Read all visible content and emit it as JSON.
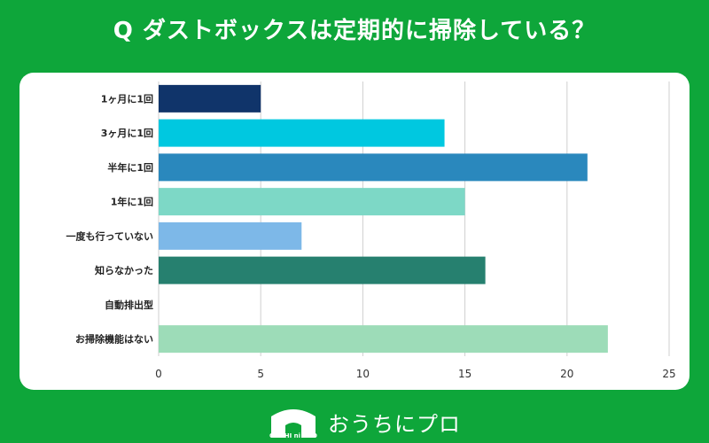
{
  "title": "Q ダストボックスは定期的に掃除している？",
  "brand": {
    "logo_text": "おうちにプロ",
    "logo_mini": "OUCHI ni PRO"
  },
  "chart_data": {
    "type": "bar",
    "orientation": "horizontal",
    "categories": [
      "1ヶ月に1回",
      "3ヶ月に1回",
      "半年に1回",
      "1年に1回",
      "一度も行っていない",
      "知らなかった",
      "自動排出型",
      "お掃除機能はない"
    ],
    "values": [
      5,
      14,
      21,
      15,
      7,
      16,
      0,
      22
    ],
    "colors": [
      "#10346a",
      "#00c8e0",
      "#2a88bd",
      "#7dd8c6",
      "#7db8e8",
      "#26806f",
      "#9ad2aa",
      "#9ddcb8"
    ],
    "xlim": [
      0,
      25
    ],
    "xticks": [
      0,
      5,
      10,
      15,
      20,
      25
    ],
    "grid": true
  }
}
